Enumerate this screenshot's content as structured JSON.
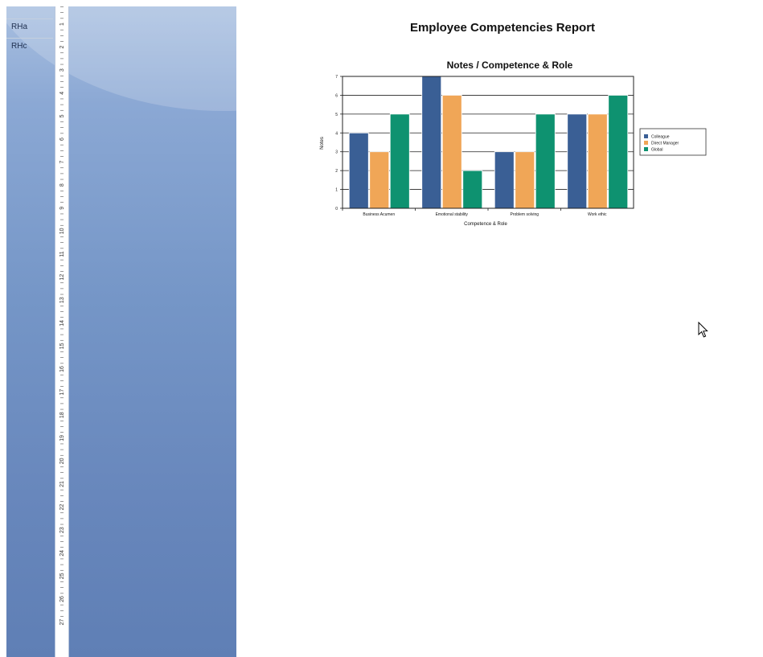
{
  "sections": [
    {
      "label": "RHa"
    },
    {
      "label": "RHc"
    }
  ],
  "ruler": {
    "labels": [
      "1",
      "2",
      "3",
      "4",
      "5",
      "6",
      "7",
      "8",
      "9",
      "10",
      "11",
      "12",
      "13",
      "14",
      "15",
      "16",
      "17",
      "18",
      "19",
      "20",
      "21",
      "22",
      "23",
      "24",
      "25",
      "26",
      "27"
    ]
  },
  "report": {
    "title": "Employee Competencies Report"
  },
  "chart_data": {
    "type": "bar",
    "title": "Notes / Competence & Role",
    "xlabel": "Competence & Role",
    "ylabel": "Notes",
    "categories": [
      "Business Acumen",
      "Emotional stability",
      "Problem solving",
      "Work ethic"
    ],
    "series": [
      {
        "name": "Colleague",
        "values": [
          4,
          7,
          3,
          5
        ],
        "color": "#3a5f95"
      },
      {
        "name": "Direct Manager",
        "values": [
          3,
          6,
          3,
          5
        ],
        "color": "#f0a657"
      },
      {
        "name": "Global",
        "values": [
          5,
          2,
          5,
          6
        ],
        "color": "#0e9270"
      }
    ],
    "ylim": [
      0,
      7
    ],
    "yticks": [
      "0",
      "1",
      "2",
      "3",
      "4",
      "5",
      "6",
      "7"
    ],
    "grid": true,
    "legend": "right"
  },
  "cursor": {
    "icon": "arrow-pointer-icon"
  }
}
